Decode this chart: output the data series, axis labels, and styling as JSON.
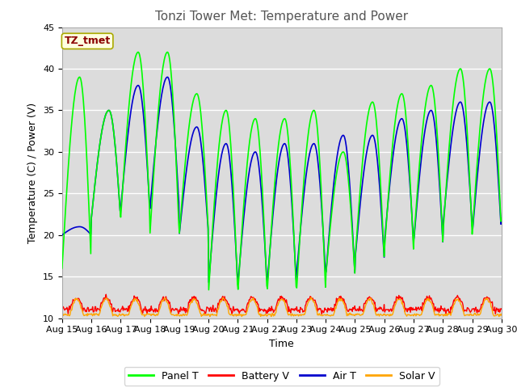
{
  "title": "Tonzi Tower Met: Temperature and Power",
  "xlabel": "Time",
  "ylabel": "Temperature (C) / Power (V)",
  "ylim": [
    10,
    45
  ],
  "xlim": [
    0,
    360
  ],
  "x_tick_labels": [
    "Aug 15",
    "Aug 16",
    "Aug 17",
    "Aug 18",
    "Aug 19",
    "Aug 20",
    "Aug 21",
    "Aug 22",
    "Aug 23",
    "Aug 24",
    "Aug 25",
    "Aug 26",
    "Aug 27",
    "Aug 28",
    "Aug 29",
    "Aug 30"
  ],
  "x_tick_positions": [
    0,
    24,
    48,
    72,
    96,
    120,
    144,
    168,
    192,
    216,
    240,
    264,
    288,
    312,
    336,
    360
  ],
  "colors": {
    "panel_t": "#00FF00",
    "battery_v": "#FF0000",
    "air_t": "#0000CD",
    "solar_v": "#FFA500"
  },
  "background_color": "#DCDCDC",
  "plot_bg_color": "#DCDCDC",
  "fig_bg_color": "#FFFFFF",
  "annotation_box_color": "#FFFFE0",
  "annotation_text": "TZ_tmet",
  "annotation_text_color": "#8B0000",
  "legend_labels": [
    "Panel T",
    "Battery V",
    "Air T",
    "Solar V"
  ],
  "title_fontsize": 11,
  "axis_fontsize": 9,
  "tick_fontsize": 8,
  "panel_t_peaks": [
    39,
    35,
    42,
    42,
    37,
    35,
    34,
    34,
    35,
    30,
    36,
    37,
    38,
    40,
    40,
    40
  ],
  "panel_t_lows": [
    16,
    22,
    22,
    20,
    20,
    13,
    13,
    13,
    13,
    15,
    17,
    18,
    19,
    20,
    20,
    22
  ],
  "air_t_peaks": [
    21,
    35,
    38,
    39,
    33,
    31,
    30,
    31,
    31,
    32,
    32,
    34,
    35,
    36,
    36,
    37
  ],
  "air_t_lows": [
    20,
    22,
    23,
    23,
    20,
    14,
    14,
    14,
    15,
    15,
    17,
    19,
    19,
    21,
    20,
    22
  ]
}
